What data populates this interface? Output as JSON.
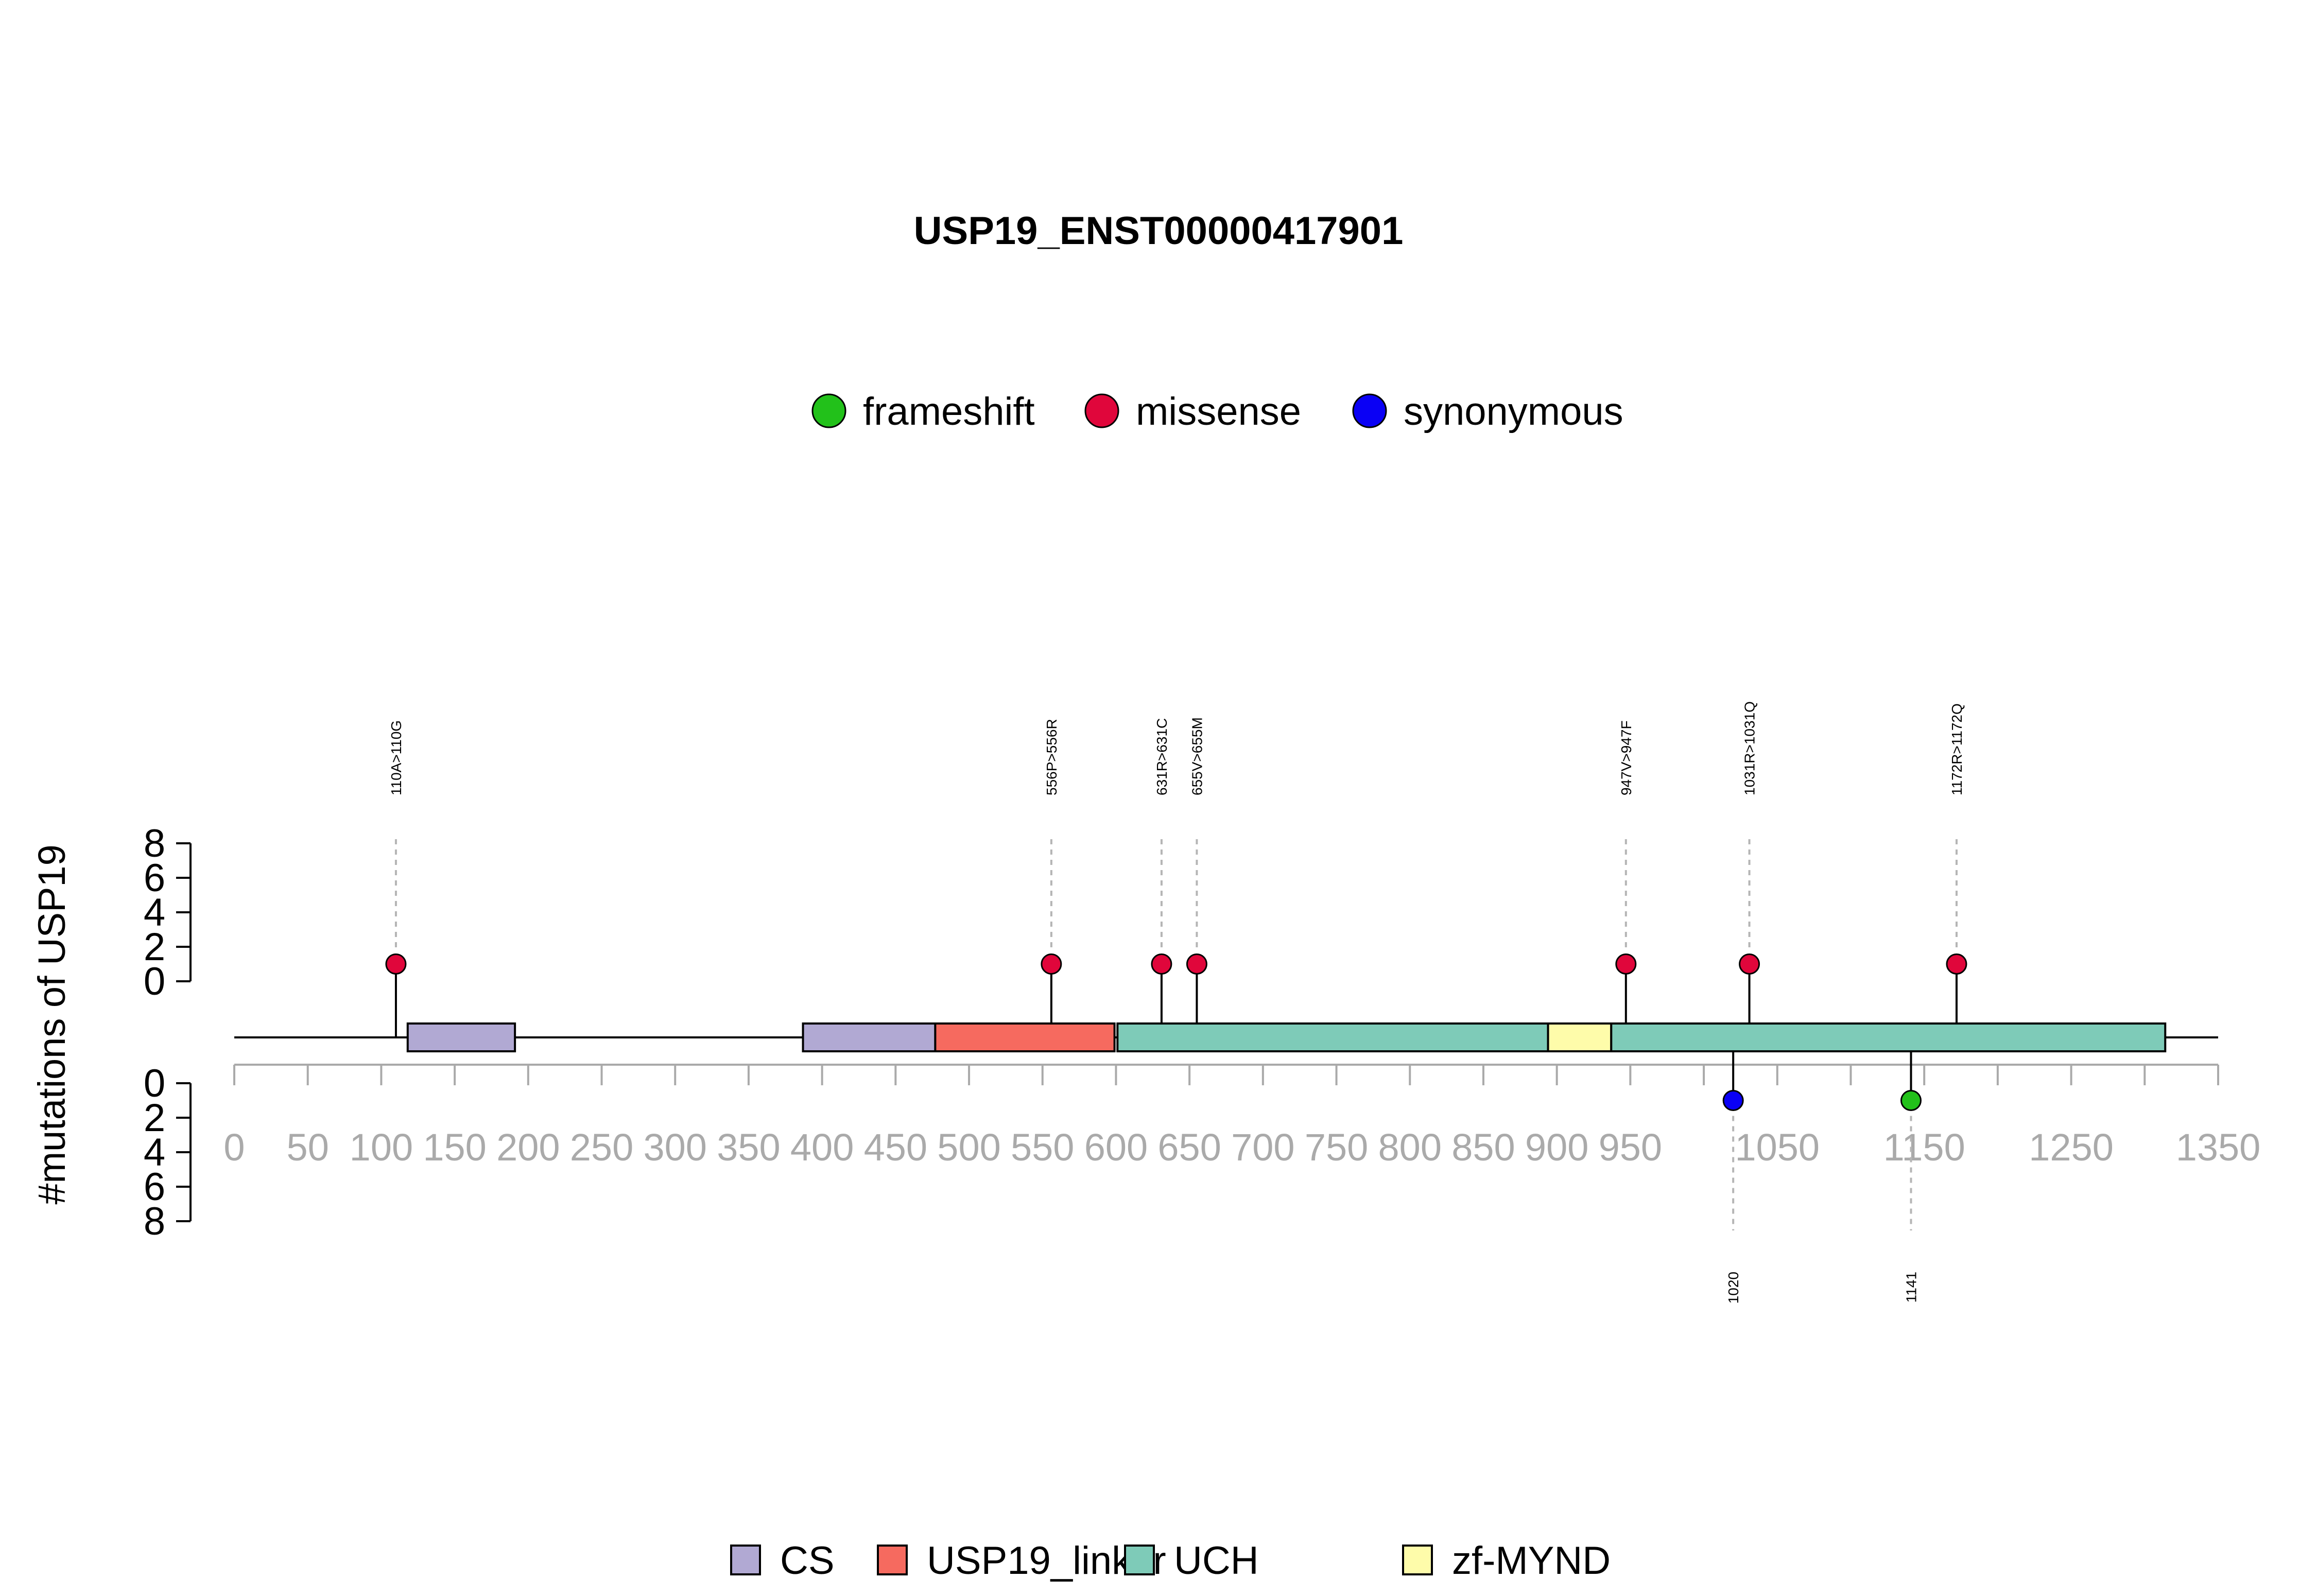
{
  "chart_data": {
    "type": "lollipop",
    "title": "USP19_ENST00000417901",
    "ylabel": "#mutations of USP19",
    "xlim": [
      0,
      1350
    ],
    "x_ticks": [
      0,
      50,
      100,
      150,
      200,
      250,
      300,
      350,
      400,
      450,
      500,
      550,
      600,
      650,
      700,
      750,
      800,
      850,
      900,
      950,
      1050,
      1150,
      1250,
      1350
    ],
    "x_tick_labels": [
      "0",
      "50",
      "100",
      "150",
      "200",
      "250",
      "300",
      "350",
      "400",
      "450",
      "500",
      "550",
      "600",
      "650",
      "700",
      "750",
      "800",
      "850",
      "900",
      "950",
      "1050",
      "1150",
      "1250",
      "1350"
    ],
    "y_upper": {
      "ylim": [
        0,
        8
      ],
      "ticks": [
        0,
        2,
        4,
        6,
        8
      ],
      "tick_labels": [
        "0",
        "2",
        "4",
        "6",
        "8"
      ]
    },
    "y_lower": {
      "ylim": [
        0,
        8
      ],
      "ticks": [
        0,
        2,
        4,
        6,
        8
      ],
      "tick_labels": [
        "0",
        "2",
        "4",
        "6",
        "8"
      ]
    },
    "mutation_legend": [
      {
        "name": "frameshift",
        "color": "#22c11a"
      },
      {
        "name": "missense",
        "color": "#e0063b"
      },
      {
        "name": "synonymous",
        "color": "#0a00f5"
      }
    ],
    "domain_legend": [
      {
        "name": "CS",
        "color": "#b1a9d3"
      },
      {
        "name": "USP19_linker",
        "color": "#f66a5f"
      },
      {
        "name": "UCH",
        "color": "#7ecbb8"
      },
      {
        "name": "zf-MYND",
        "color": "#fefcaa"
      }
    ],
    "protein_length": 1318,
    "domains": [
      {
        "name": "CS",
        "start": 118,
        "end": 191
      },
      {
        "name": "CS",
        "start": 387,
        "end": 477
      },
      {
        "name": "USP19_linker",
        "start": 477,
        "end": 599
      },
      {
        "name": "UCH",
        "start": 601,
        "end": 894
      },
      {
        "name": "zf-MYND",
        "start": 894,
        "end": 937
      },
      {
        "name": "UCH",
        "start": 937,
        "end": 1314
      }
    ],
    "mutations_upper": [
      {
        "pos": 110,
        "count": 1,
        "type": "missense",
        "label": "110A>110G"
      },
      {
        "pos": 556,
        "count": 1,
        "type": "missense",
        "label": "556P>556R"
      },
      {
        "pos": 631,
        "count": 1,
        "type": "missense",
        "label": "631R>631C"
      },
      {
        "pos": 655,
        "count": 1,
        "type": "missense",
        "label": "655V>655M"
      },
      {
        "pos": 947,
        "count": 1,
        "type": "missense",
        "label": "947V>947F"
      },
      {
        "pos": 1031,
        "count": 1,
        "type": "missense",
        "label": "1031R>1031Q"
      },
      {
        "pos": 1172,
        "count": 1,
        "type": "missense",
        "label": "1172R>1172Q"
      }
    ],
    "mutations_lower": [
      {
        "pos": 1020,
        "count": 1,
        "type": "synonymous",
        "label": "1020"
      },
      {
        "pos": 1141,
        "count": 1,
        "type": "frameshift",
        "label": "1141"
      }
    ]
  }
}
